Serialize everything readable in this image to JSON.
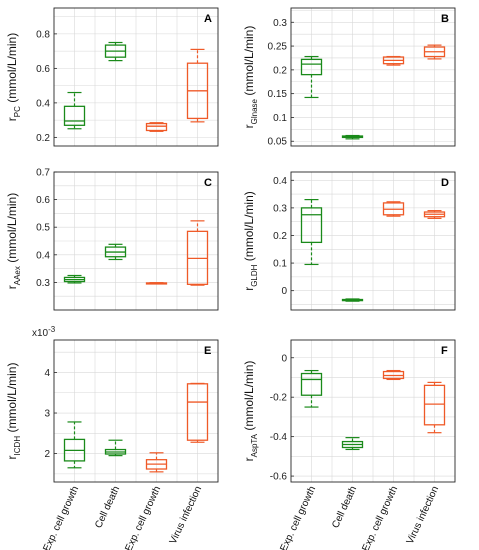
{
  "colors": {
    "green": "#1a8a1a",
    "orange": "#ef5a28",
    "grid": "#d9d9d9",
    "frame": "#262626"
  },
  "categories": [
    "Exp. cell growth",
    "Cell death",
    "Exp. cell growth",
    "Virus infection"
  ],
  "category_colors": [
    "green",
    "green",
    "orange",
    "orange"
  ],
  "chart_data": [
    {
      "type": "box",
      "label": "A",
      "ylabel": "r",
      "ylabel_sub": "PC",
      "ylabel_unit": "(mmol/L/min)",
      "ylim": [
        0.15,
        0.95
      ],
      "yticks": [
        0.2,
        0.4,
        0.6,
        0.8
      ],
      "ytick_labels": [
        "0.2",
        "0.4",
        "0.6",
        "0.8"
      ],
      "exponent": "",
      "boxes": [
        {
          "min": 0.25,
          "q1": 0.27,
          "median": 0.295,
          "q3": 0.38,
          "max": 0.46
        },
        {
          "min": 0.645,
          "q1": 0.665,
          "median": 0.7,
          "q3": 0.735,
          "max": 0.75
        },
        {
          "min": 0.235,
          "q1": 0.24,
          "median": 0.265,
          "q3": 0.28,
          "max": 0.285
        },
        {
          "min": 0.29,
          "q1": 0.31,
          "median": 0.47,
          "q3": 0.63,
          "max": 0.71
        }
      ]
    },
    {
      "type": "box",
      "label": "B",
      "ylabel": "r",
      "ylabel_sub": "Glnase",
      "ylabel_unit": "(mmol/L/min)",
      "ylim": [
        0.04,
        0.33
      ],
      "yticks": [
        0.05,
        0.1,
        0.15,
        0.2,
        0.25,
        0.3
      ],
      "ytick_labels": [
        "0.05",
        "0.1",
        "0.15",
        "0.2",
        "0.25",
        "0.3"
      ],
      "exponent": "",
      "boxes": [
        {
          "min": 0.142,
          "q1": 0.19,
          "median": 0.212,
          "q3": 0.222,
          "max": 0.228
        },
        {
          "min": 0.055,
          "q1": 0.058,
          "median": 0.06,
          "q3": 0.061,
          "max": 0.062
        },
        {
          "min": 0.21,
          "q1": 0.213,
          "median": 0.22,
          "q3": 0.227,
          "max": 0.228
        },
        {
          "min": 0.223,
          "q1": 0.228,
          "median": 0.238,
          "q3": 0.248,
          "max": 0.252
        }
      ]
    },
    {
      "type": "box",
      "label": "C",
      "ylabel": "r",
      "ylabel_sub": "AAex",
      "ylabel_unit": "(mmol/L/min)",
      "ylim": [
        0.2,
        0.7
      ],
      "yticks": [
        0.3,
        0.4,
        0.5,
        0.6,
        0.7
      ],
      "ytick_labels": [
        "0.3",
        "0.4",
        "0.5",
        "0.6",
        "0.7"
      ],
      "exponent": "",
      "boxes": [
        {
          "min": 0.298,
          "q1": 0.303,
          "median": 0.31,
          "q3": 0.318,
          "max": 0.325
        },
        {
          "min": 0.383,
          "q1": 0.393,
          "median": 0.41,
          "q3": 0.428,
          "max": 0.438
        },
        {
          "min": 0.295,
          "q1": 0.296,
          "median": 0.297,
          "q3": 0.298,
          "max": 0.299
        },
        {
          "min": 0.29,
          "q1": 0.293,
          "median": 0.387,
          "q3": 0.485,
          "max": 0.523
        }
      ]
    },
    {
      "type": "box",
      "label": "D",
      "ylabel": "r",
      "ylabel_sub": "GLDH",
      "ylabel_unit": "(mmol/L/min)",
      "ylim": [
        -0.07,
        0.43
      ],
      "yticks": [
        0.0,
        0.1,
        0.2,
        0.3,
        0.4
      ],
      "ytick_labels": [
        "0",
        "0.1",
        "0.2",
        "0.3",
        "0.4"
      ],
      "exponent": "",
      "boxes": [
        {
          "min": 0.095,
          "q1": 0.175,
          "median": 0.275,
          "q3": 0.3,
          "max": 0.33
        },
        {
          "min": -0.038,
          "q1": -0.036,
          "median": -0.034,
          "q3": -0.032,
          "max": -0.03
        },
        {
          "min": 0.27,
          "q1": 0.275,
          "median": 0.295,
          "q3": 0.318,
          "max": 0.322
        },
        {
          "min": 0.262,
          "q1": 0.268,
          "median": 0.277,
          "q3": 0.285,
          "max": 0.29
        }
      ]
    },
    {
      "type": "box",
      "label": "E",
      "ylabel": "r",
      "ylabel_sub": "ICDH",
      "ylabel_unit": "(mmol/L/min)",
      "ylim": [
        1.3,
        4.8
      ],
      "yticks": [
        2,
        3,
        4
      ],
      "ytick_labels": [
        "2",
        "3",
        "4"
      ],
      "exponent": "x10",
      "exponent_power": "-3",
      "boxes": [
        {
          "min": 1.65,
          "q1": 1.82,
          "median": 2.08,
          "q3": 2.35,
          "max": 2.78
        },
        {
          "min": 1.95,
          "q1": 1.99,
          "median": 2.04,
          "q3": 2.1,
          "max": 2.33
        },
        {
          "min": 1.55,
          "q1": 1.62,
          "median": 1.74,
          "q3": 1.85,
          "max": 2.02
        },
        {
          "min": 2.28,
          "q1": 2.33,
          "median": 3.27,
          "q3": 3.72,
          "max": 3.73
        }
      ]
    },
    {
      "type": "box",
      "label": "F",
      "ylabel": "r",
      "ylabel_sub": "AspTA",
      "ylabel_unit": "(mmol/L/min)",
      "ylim": [
        -0.63,
        0.09
      ],
      "yticks": [
        -0.6,
        -0.4,
        -0.2,
        0.0
      ],
      "ytick_labels": [
        "-0.6",
        "-0.4",
        "-0.2",
        "0"
      ],
      "exponent": "",
      "boxes": [
        {
          "min": -0.25,
          "q1": -0.19,
          "median": -0.11,
          "q3": -0.08,
          "max": -0.065
        },
        {
          "min": -0.465,
          "q1": -0.455,
          "median": -0.44,
          "q3": -0.425,
          "max": -0.405
        },
        {
          "min": -0.11,
          "q1": -0.105,
          "median": -0.09,
          "q3": -0.07,
          "max": -0.065
        },
        {
          "min": -0.38,
          "q1": -0.34,
          "median": -0.235,
          "q3": -0.14,
          "max": -0.125
        }
      ]
    }
  ]
}
